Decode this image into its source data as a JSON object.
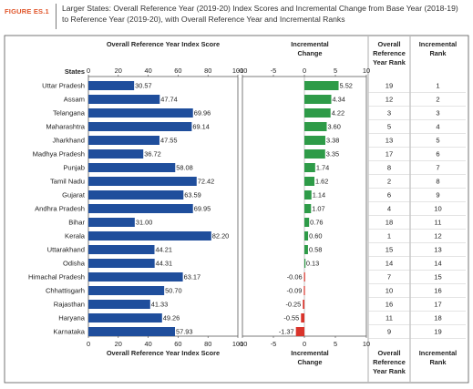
{
  "figure": {
    "label": "FIGURE ES.1",
    "title": "Larger States: Overall Reference Year (2019-20) Index Scores and Incremental Change from Base Year (2018-19) to Reference Year (2019-20), with Overall Reference Year and Incremental Ranks"
  },
  "colors": {
    "bar": "#1f4e9c",
    "positive": "#2e9b48",
    "negative": "#d9342b",
    "text": "#222222"
  },
  "chart_data": {
    "type": "bar",
    "row_header": "States",
    "categories": [
      "Uttar Pradesh",
      "Assam",
      "Telangana",
      "Maharashtra",
      "Jharkhand",
      "Madhya Pradesh",
      "Punjab",
      "Tamil Nadu",
      "Gujarat",
      "Andhra Pradesh",
      "Bihar",
      "Kerala",
      "Uttarakhand",
      "Odisha",
      "Himachal Pradesh",
      "Chhattisgarh",
      "Rajasthan",
      "Haryana",
      "Karnataka"
    ],
    "index_score": {
      "header": "Overall Reference Year Index Score",
      "values": [
        30.57,
        47.74,
        69.96,
        69.14,
        47.55,
        36.72,
        58.08,
        72.42,
        63.59,
        69.95,
        31.0,
        82.2,
        44.21,
        44.31,
        63.17,
        50.7,
        41.33,
        49.26,
        57.93
      ],
      "labels": [
        "30.57",
        "47.74",
        "69.96",
        "69.14",
        "47.55",
        "36.72",
        "58.08",
        "72.42",
        "63.59",
        "69.95",
        "31.00",
        "82.20",
        "44.21",
        "44.31",
        "63.17",
        "50.70",
        "41.33",
        "49.26",
        "57.93"
      ],
      "ticks": [
        "0",
        "20",
        "40",
        "60",
        "80",
        "100"
      ],
      "xlim": [
        0,
        100
      ]
    },
    "incremental_change": {
      "header": "Incremental Change",
      "values": [
        5.52,
        4.34,
        4.22,
        3.6,
        3.38,
        3.35,
        1.74,
        1.62,
        1.14,
        1.07,
        0.76,
        0.6,
        0.58,
        0.13,
        -0.06,
        -0.09,
        -0.25,
        -0.55,
        -1.37
      ],
      "labels": [
        "5.52",
        "4.34",
        "4.22",
        "3.60",
        "3.38",
        "3.35",
        "1.74",
        "1.62",
        "1.14",
        "1.07",
        "0.76",
        "0.60",
        "0.58",
        "0.13",
        "-0.06",
        "-0.09",
        "-0.25",
        "-0.55",
        "-1.37"
      ],
      "ticks": [
        "-10",
        "-5",
        "0",
        "5",
        "10"
      ],
      "xlim": [
        -10,
        10
      ]
    },
    "overall_rank": {
      "header": "Overall Reference Year Rank",
      "values": [
        "19",
        "12",
        "3",
        "5",
        "13",
        "17",
        "8",
        "2",
        "6",
        "4",
        "18",
        "1",
        "15",
        "14",
        "7",
        "10",
        "16",
        "11",
        "9"
      ]
    },
    "incremental_rank": {
      "header": "Incremental Rank",
      "values": [
        "1",
        "2",
        "3",
        "4",
        "5",
        "6",
        "7",
        "8",
        "9",
        "10",
        "11",
        "12",
        "13",
        "14",
        "15",
        "16",
        "17",
        "18",
        "19"
      ]
    },
    "grid": false
  }
}
